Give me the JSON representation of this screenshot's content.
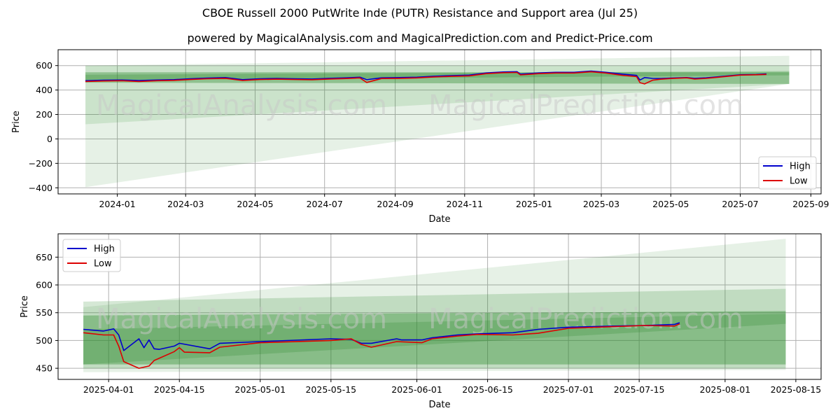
{
  "title": "CBOE Russell 2000 PutWrite Inde (PUTR) Resistance and Support area (Jul 25)",
  "subtitle": "powered by MagicalAnalysis.com and MagicalPrediction.com and Predict-Price.com",
  "watermark": {
    "left": "MagicalAnalysis.com",
    "right": "MagicalPrediction.com"
  },
  "colors": {
    "high": "#0000cc",
    "low": "#dd0000",
    "band": "#2e8b2e"
  },
  "chart_data": [
    {
      "type": "line",
      "xlabel": "Date",
      "ylabel": "Price",
      "xlim": [
        "2023-11-10",
        "2025-09-10"
      ],
      "ylim": [
        -450,
        730
      ],
      "xticks": [
        "2024-01",
        "2024-03",
        "2024-05",
        "2024-07",
        "2024-09",
        "2024-11",
        "2025-01",
        "2025-03",
        "2025-05",
        "2025-07",
        "2025-09"
      ],
      "yticks": [
        -400,
        -200,
        0,
        200,
        400,
        600
      ],
      "grid": true,
      "legend": {
        "position": "lower-right",
        "entries": [
          "High",
          "Low"
        ]
      },
      "bands": [
        {
          "x": [
            "2023-12-04",
            "2025-08-13"
          ],
          "upper": [
            600,
            680
          ],
          "lower": [
            -395,
            450
          ],
          "opacity": 0.12
        },
        {
          "x": [
            "2023-12-04",
            "2025-08-13"
          ],
          "upper": [
            600,
            600
          ],
          "lower": [
            120,
            450
          ],
          "opacity": 0.14
        },
        {
          "x": [
            "2023-12-04",
            "2025-08-13"
          ],
          "upper": [
            545,
            545
          ],
          "lower": [
            460,
            450
          ],
          "opacity": 0.38
        },
        {
          "x": [
            "2023-12-04",
            "2025-08-13"
          ],
          "upper": [
            525,
            555
          ],
          "lower": [
            480,
            520
          ],
          "opacity": 0.28
        }
      ],
      "series": [
        {
          "name": "High",
          "x": [
            "2023-12-04",
            "2023-12-20",
            "2024-01-05",
            "2024-01-20",
            "2024-02-05",
            "2024-02-20",
            "2024-03-05",
            "2024-03-20",
            "2024-04-05",
            "2024-04-20",
            "2024-05-05",
            "2024-05-20",
            "2024-06-05",
            "2024-06-20",
            "2024-07-05",
            "2024-07-20",
            "2024-08-01",
            "2024-08-07",
            "2024-08-20",
            "2024-09-05",
            "2024-09-20",
            "2024-10-05",
            "2024-10-20",
            "2024-11-05",
            "2024-11-20",
            "2024-12-05",
            "2024-12-17",
            "2024-12-20",
            "2025-01-05",
            "2025-01-20",
            "2025-02-05",
            "2025-02-20",
            "2025-03-05",
            "2025-03-20",
            "2025-04-01",
            "2025-04-04",
            "2025-04-08",
            "2025-04-15",
            "2025-04-22",
            "2025-05-01",
            "2025-05-15",
            "2025-05-22",
            "2025-06-01",
            "2025-06-15",
            "2025-07-01",
            "2025-07-15",
            "2025-07-24"
          ],
          "y": [
            476,
            480,
            482,
            478,
            482,
            485,
            492,
            498,
            502,
            485,
            492,
            495,
            492,
            490,
            496,
            500,
            505,
            485,
            500,
            502,
            505,
            513,
            518,
            522,
            540,
            548,
            550,
            530,
            540,
            545,
            545,
            555,
            545,
            530,
            520,
            482,
            502,
            495,
            494,
            498,
            502,
            496,
            500,
            511,
            525,
            527,
            532
          ]
        },
        {
          "name": "Low",
          "x": [
            "2023-12-04",
            "2023-12-20",
            "2024-01-05",
            "2024-01-20",
            "2024-02-05",
            "2024-02-20",
            "2024-03-05",
            "2024-03-20",
            "2024-04-05",
            "2024-04-20",
            "2024-05-05",
            "2024-05-20",
            "2024-06-05",
            "2024-06-20",
            "2024-07-05",
            "2024-07-20",
            "2024-08-01",
            "2024-08-07",
            "2024-08-20",
            "2024-09-05",
            "2024-09-20",
            "2024-10-05",
            "2024-10-20",
            "2024-11-05",
            "2024-11-20",
            "2024-12-05",
            "2024-12-17",
            "2024-12-20",
            "2025-01-05",
            "2025-01-20",
            "2025-02-05",
            "2025-02-20",
            "2025-03-05",
            "2025-03-20",
            "2025-04-01",
            "2025-04-04",
            "2025-04-08",
            "2025-04-15",
            "2025-04-22",
            "2025-05-01",
            "2025-05-15",
            "2025-05-22",
            "2025-06-01",
            "2025-06-15",
            "2025-07-01",
            "2025-07-15",
            "2025-07-24"
          ],
          "y": [
            470,
            474,
            476,
            470,
            476,
            479,
            486,
            492,
            496,
            478,
            486,
            489,
            486,
            484,
            490,
            494,
            499,
            462,
            494,
            496,
            499,
            507,
            512,
            516,
            534,
            542,
            544,
            524,
            534,
            539,
            539,
            549,
            539,
            520,
            510,
            460,
            450,
            480,
            488,
            494,
            500,
            490,
            495,
            508,
            522,
            525,
            528
          ]
        }
      ]
    },
    {
      "type": "line",
      "xlabel": "Date",
      "ylabel": "Price",
      "xlim": [
        "2025-03-22",
        "2025-08-20"
      ],
      "ylim": [
        430,
        692
      ],
      "xticks": [
        "2025-04-01",
        "2025-04-15",
        "2025-05-01",
        "2025-05-15",
        "2025-06-01",
        "2025-06-15",
        "2025-07-01",
        "2025-07-15",
        "2025-08-01",
        "2025-08-15"
      ],
      "yticks": [
        450,
        500,
        550,
        600,
        650
      ],
      "grid": true,
      "legend": {
        "position": "upper-left",
        "entries": [
          "High",
          "Low"
        ]
      },
      "bands": [
        {
          "x": [
            "2025-03-27",
            "2025-08-13"
          ],
          "upper": [
            560,
            683
          ],
          "lower": [
            443,
            447
          ],
          "opacity": 0.12
        },
        {
          "x": [
            "2025-03-27",
            "2025-08-13"
          ],
          "upper": [
            570,
            593
          ],
          "lower": [
            450,
            450
          ],
          "opacity": 0.2
        },
        {
          "x": [
            "2025-03-27",
            "2025-08-13"
          ],
          "upper": [
            545,
            553
          ],
          "lower": [
            457,
            457
          ],
          "opacity": 0.38
        },
        {
          "x": [
            "2025-03-27",
            "2025-08-13"
          ],
          "upper": [
            520,
            548
          ],
          "lower": [
            457,
            530
          ],
          "opacity": 0.25
        }
      ],
      "series": [
        {
          "name": "High",
          "x": [
            "2025-03-27",
            "2025-03-31",
            "2025-04-02",
            "2025-04-03",
            "2025-04-04",
            "2025-04-07",
            "2025-04-08",
            "2025-04-09",
            "2025-04-10",
            "2025-04-11",
            "2025-04-14",
            "2025-04-15",
            "2025-04-21",
            "2025-04-23",
            "2025-05-01",
            "2025-05-15",
            "2025-05-19",
            "2025-05-21",
            "2025-05-23",
            "2025-05-28",
            "2025-05-29",
            "2025-06-02",
            "2025-06-04",
            "2025-06-09",
            "2025-06-13",
            "2025-06-20",
            "2025-06-25",
            "2025-07-01",
            "2025-07-10",
            "2025-07-16",
            "2025-07-22",
            "2025-07-23"
          ],
          "y": [
            520,
            517,
            521,
            510,
            482,
            503,
            487,
            501,
            485,
            484,
            490,
            495,
            485,
            495,
            498,
            503,
            502,
            495,
            495,
            503,
            501,
            501,
            505,
            510,
            512,
            514,
            520,
            524,
            526,
            527,
            529,
            532
          ]
        },
        {
          "name": "Low",
          "x": [
            "2025-03-27",
            "2025-03-31",
            "2025-04-01",
            "2025-04-02",
            "2025-04-03",
            "2025-04-04",
            "2025-04-07",
            "2025-04-09",
            "2025-04-10",
            "2025-04-14",
            "2025-04-15",
            "2025-04-16",
            "2025-04-21",
            "2025-04-23",
            "2025-05-01",
            "2025-05-15",
            "2025-05-19",
            "2025-05-21",
            "2025-05-23",
            "2025-05-28",
            "2025-06-02",
            "2025-06-04",
            "2025-06-09",
            "2025-06-13",
            "2025-06-20",
            "2025-06-25",
            "2025-07-01",
            "2025-07-10",
            "2025-07-16",
            "2025-07-22",
            "2025-07-23"
          ],
          "y": [
            514,
            510,
            510,
            510,
            490,
            462,
            450,
            454,
            464,
            480,
            487,
            479,
            478,
            488,
            496,
            500,
            503,
            493,
            488,
            498,
            496,
            503,
            508,
            511,
            510,
            513,
            522,
            525,
            527,
            526,
            530
          ]
        }
      ]
    }
  ]
}
